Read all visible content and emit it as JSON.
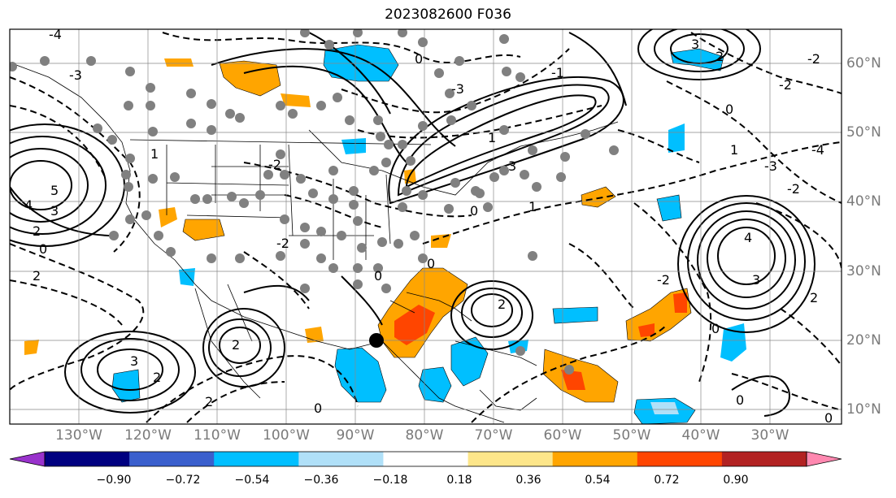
{
  "title": "2023082600 F036",
  "lat_labels": [
    "60°N",
    "50°N",
    "40°N",
    "30°N",
    "20°N",
    "10°N"
  ],
  "lon_labels": [
    "130°W",
    "120°W",
    "110°W",
    "100°W",
    "90°W",
    "80°W",
    "70°W",
    "60°W",
    "50°W",
    "40°W",
    "30°W"
  ],
  "colorbar": {
    "ticks": [
      "−0.90",
      "−0.72",
      "−0.54",
      "−0.36",
      "−0.18",
      "0.18",
      "0.36",
      "0.54",
      "0.72",
      "0.90"
    ],
    "colors": [
      "#9932cc",
      "#000080",
      "#3a5fcd",
      "#00bfff",
      "#b0e0f8",
      "#ffffff",
      "#fde68a",
      "#ffa500",
      "#ff4500",
      "#b22222",
      "#ff88b0"
    ]
  },
  "contour_labels": [
    "4",
    "3",
    "2",
    "1",
    "0",
    "-1",
    "-2",
    "-3",
    "-4",
    "5"
  ],
  "marker_legend": {
    "station_dots": "grey",
    "storm_center": "black"
  }
}
